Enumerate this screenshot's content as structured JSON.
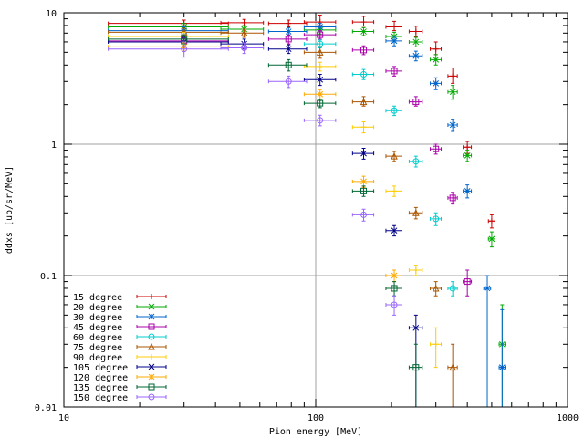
{
  "chart_data": {
    "type": "scatter",
    "title": "",
    "xlabel": "Pion energy [MeV]",
    "ylabel": "ddxs [ub/sr/MeV]",
    "xscale": "log",
    "yscale": "log",
    "xlim": [
      10,
      1000
    ],
    "ylim": [
      0.01,
      10
    ],
    "x_ticks": [
      {
        "value": 10,
        "label": "10"
      },
      {
        "value": 100,
        "label": "100"
      },
      {
        "value": 1000,
        "label": "1000"
      }
    ],
    "y_ticks": [
      {
        "value": 0.01,
        "label": "0.01"
      },
      {
        "value": 0.1,
        "label": "0.1"
      },
      {
        "value": 1,
        "label": "1"
      },
      {
        "value": 10,
        "label": "10"
      }
    ],
    "grid": true,
    "legend": "bottom-left",
    "series": [
      {
        "name": "15 degree",
        "color": "#cc0000",
        "marker": "plus",
        "points": [
          {
            "x": 30,
            "xlo": 15,
            "xhi": 45,
            "y": 8.3,
            "ylo": 7.8,
            "yhi": 8.8
          },
          {
            "x": 52,
            "xlo": 42,
            "xhi": 62,
            "y": 8.4,
            "ylo": 8.0,
            "yhi": 8.9
          },
          {
            "x": 78,
            "xlo": 65,
            "xhi": 92,
            "y": 8.3,
            "ylo": 7.8,
            "yhi": 8.8
          },
          {
            "x": 104,
            "xlo": 90,
            "xhi": 120,
            "y": 8.5,
            "ylo": 8.0,
            "yhi": 9.6
          },
          {
            "x": 155,
            "xlo": 140,
            "xhi": 170,
            "y": 8.5,
            "ylo": 7.9,
            "yhi": 9.4
          },
          {
            "x": 205,
            "xlo": 190,
            "xhi": 220,
            "y": 7.8,
            "ylo": 7.3,
            "yhi": 8.6
          },
          {
            "x": 250,
            "xlo": 235,
            "xhi": 265,
            "y": 7.2,
            "ylo": 6.6,
            "yhi": 7.9
          },
          {
            "x": 300,
            "xlo": 285,
            "xhi": 315,
            "y": 5.3,
            "ylo": 4.8,
            "yhi": 6.0
          },
          {
            "x": 350,
            "xlo": 335,
            "xhi": 365,
            "y": 3.3,
            "ylo": 2.9,
            "yhi": 3.8
          },
          {
            "x": 400,
            "xlo": 385,
            "xhi": 415,
            "y": 0.95,
            "ylo": 0.85,
            "yhi": 1.05
          },
          {
            "x": 500,
            "xlo": 485,
            "xhi": 515,
            "y": 0.26,
            "ylo": 0.23,
            "yhi": 0.29
          }
        ]
      },
      {
        "name": "20 degree",
        "color": "#00aa00",
        "marker": "x",
        "points": [
          {
            "x": 30,
            "xlo": 15,
            "xhi": 45,
            "y": 7.8,
            "ylo": 7.3,
            "yhi": 8.3
          },
          {
            "x": 52,
            "xlo": 42,
            "xhi": 62,
            "y": 7.5,
            "ylo": 7.0,
            "yhi": 8.0
          },
          {
            "x": 104,
            "xlo": 90,
            "xhi": 120,
            "y": 7.4,
            "ylo": 6.9,
            "yhi": 7.9
          },
          {
            "x": 155,
            "xlo": 140,
            "xhi": 170,
            "y": 7.2,
            "ylo": 6.7,
            "yhi": 7.7
          },
          {
            "x": 205,
            "xlo": 190,
            "xhi": 220,
            "y": 6.6,
            "ylo": 6.1,
            "yhi": 7.1
          },
          {
            "x": 250,
            "xlo": 235,
            "xhi": 265,
            "y": 6.0,
            "ylo": 5.5,
            "yhi": 6.5
          },
          {
            "x": 300,
            "xlo": 285,
            "xhi": 315,
            "y": 4.4,
            "ylo": 4.0,
            "yhi": 4.8
          },
          {
            "x": 350,
            "xlo": 335,
            "xhi": 365,
            "y": 2.5,
            "ylo": 2.2,
            "yhi": 2.8
          },
          {
            "x": 400,
            "xlo": 385,
            "xhi": 415,
            "y": 0.82,
            "ylo": 0.74,
            "yhi": 0.9
          },
          {
            "x": 500,
            "xlo": 485,
            "xhi": 515,
            "y": 0.19,
            "ylo": 0.165,
            "yhi": 0.215
          },
          {
            "x": 550,
            "xlo": 535,
            "xhi": 565,
            "y": 0.03,
            "ylo": 0.01,
            "yhi": 0.06
          }
        ]
      },
      {
        "name": "30 degree",
        "color": "#0066cc",
        "marker": "star",
        "points": [
          {
            "x": 30,
            "xlo": 15,
            "xhi": 45,
            "y": 7.3,
            "ylo": 6.8,
            "yhi": 7.8
          },
          {
            "x": 78,
            "xlo": 65,
            "xhi": 92,
            "y": 7.2,
            "ylo": 6.7,
            "yhi": 7.7
          },
          {
            "x": 104,
            "xlo": 90,
            "xhi": 120,
            "y": 7.8,
            "ylo": 7.3,
            "yhi": 8.3
          },
          {
            "x": 205,
            "xlo": 190,
            "xhi": 220,
            "y": 6.1,
            "ylo": 5.6,
            "yhi": 6.6
          },
          {
            "x": 250,
            "xlo": 235,
            "xhi": 265,
            "y": 4.7,
            "ylo": 4.3,
            "yhi": 5.1
          },
          {
            "x": 300,
            "xlo": 285,
            "xhi": 315,
            "y": 2.9,
            "ylo": 2.6,
            "yhi": 3.2
          },
          {
            "x": 350,
            "xlo": 335,
            "xhi": 365,
            "y": 1.4,
            "ylo": 1.25,
            "yhi": 1.55
          },
          {
            "x": 400,
            "xlo": 385,
            "xhi": 415,
            "y": 0.44,
            "ylo": 0.39,
            "yhi": 0.49
          },
          {
            "x": 480,
            "xlo": 465,
            "xhi": 495,
            "y": 0.08,
            "ylo": 0.01,
            "yhi": 0.1
          },
          {
            "x": 550,
            "xlo": 535,
            "xhi": 565,
            "y": 0.02,
            "ylo": 0.01,
            "yhi": 0.055
          }
        ]
      },
      {
        "name": "45 degree",
        "color": "#aa00aa",
        "marker": "square",
        "points": [
          {
            "x": 30,
            "xlo": 15,
            "xhi": 45,
            "y": 6.1,
            "ylo": 5.6,
            "yhi": 6.6
          },
          {
            "x": 78,
            "xlo": 65,
            "xhi": 92,
            "y": 6.3,
            "ylo": 5.8,
            "yhi": 6.8
          },
          {
            "x": 104,
            "xlo": 90,
            "xhi": 120,
            "y": 6.8,
            "ylo": 6.3,
            "yhi": 7.3
          },
          {
            "x": 155,
            "xlo": 140,
            "xhi": 170,
            "y": 5.2,
            "ylo": 4.8,
            "yhi": 5.6
          },
          {
            "x": 205,
            "xlo": 190,
            "xhi": 220,
            "y": 3.6,
            "ylo": 3.3,
            "yhi": 3.9
          },
          {
            "x": 250,
            "xlo": 235,
            "xhi": 265,
            "y": 2.1,
            "ylo": 1.95,
            "yhi": 2.3
          },
          {
            "x": 300,
            "xlo": 285,
            "xhi": 315,
            "y": 0.92,
            "ylo": 0.84,
            "yhi": 1.0
          },
          {
            "x": 350,
            "xlo": 335,
            "xhi": 365,
            "y": 0.39,
            "ylo": 0.35,
            "yhi": 0.43
          },
          {
            "x": 400,
            "xlo": 385,
            "xhi": 415,
            "y": 0.09,
            "ylo": 0.07,
            "yhi": 0.11
          }
        ]
      },
      {
        "name": "60 degree",
        "color": "#00cccc",
        "marker": "circle",
        "points": [
          {
            "x": 104,
            "xlo": 90,
            "xhi": 120,
            "y": 5.8,
            "ylo": 5.4,
            "yhi": 6.2
          },
          {
            "x": 155,
            "xlo": 140,
            "xhi": 170,
            "y": 3.4,
            "ylo": 3.1,
            "yhi": 3.7
          },
          {
            "x": 205,
            "xlo": 190,
            "xhi": 220,
            "y": 1.8,
            "ylo": 1.65,
            "yhi": 1.95
          },
          {
            "x": 250,
            "xlo": 235,
            "xhi": 265,
            "y": 0.74,
            "ylo": 0.67,
            "yhi": 0.81
          },
          {
            "x": 300,
            "xlo": 285,
            "xhi": 315,
            "y": 0.27,
            "ylo": 0.24,
            "yhi": 0.3
          },
          {
            "x": 350,
            "xlo": 335,
            "xhi": 365,
            "y": 0.08,
            "ylo": 0.07,
            "yhi": 0.09
          }
        ]
      },
      {
        "name": "75 degree",
        "color": "#aa5500",
        "marker": "triangle",
        "points": [
          {
            "x": 30,
            "xlo": 15,
            "xhi": 45,
            "y": 7.1,
            "ylo": 6.6,
            "yhi": 7.6
          },
          {
            "x": 52,
            "xlo": 42,
            "xhi": 62,
            "y": 7.0,
            "ylo": 6.5,
            "yhi": 7.5
          },
          {
            "x": 104,
            "xlo": 90,
            "xhi": 120,
            "y": 5.0,
            "ylo": 4.5,
            "yhi": 5.5
          },
          {
            "x": 155,
            "xlo": 140,
            "xhi": 170,
            "y": 2.1,
            "ylo": 1.95,
            "yhi": 2.3
          },
          {
            "x": 205,
            "xlo": 190,
            "xhi": 220,
            "y": 0.81,
            "ylo": 0.74,
            "yhi": 0.88
          },
          {
            "x": 250,
            "xlo": 235,
            "xhi": 265,
            "y": 0.3,
            "ylo": 0.27,
            "yhi": 0.33
          },
          {
            "x": 300,
            "xlo": 285,
            "xhi": 315,
            "y": 0.08,
            "ylo": 0.07,
            "yhi": 0.09
          },
          {
            "x": 350,
            "xlo": 335,
            "xhi": 365,
            "y": 0.02,
            "ylo": 0.01,
            "yhi": 0.03
          }
        ]
      },
      {
        "name": "90 degree",
        "color": "#ffcc00",
        "marker": "plus",
        "points": [
          {
            "x": 30,
            "xlo": 15,
            "xhi": 45,
            "y": 6.6,
            "ylo": 6.1,
            "yhi": 7.1
          },
          {
            "x": 104,
            "xlo": 90,
            "xhi": 120,
            "y": 3.9,
            "ylo": 3.6,
            "yhi": 4.2
          },
          {
            "x": 155,
            "xlo": 140,
            "xhi": 170,
            "y": 1.35,
            "ylo": 1.22,
            "yhi": 1.48
          },
          {
            "x": 205,
            "xlo": 190,
            "xhi": 220,
            "y": 0.44,
            "ylo": 0.4,
            "yhi": 0.48
          },
          {
            "x": 250,
            "xlo": 235,
            "xhi": 265,
            "y": 0.11,
            "ylo": 0.1,
            "yhi": 0.12
          },
          {
            "x": 300,
            "xlo": 285,
            "xhi": 315,
            "y": 0.03,
            "ylo": 0.02,
            "yhi": 0.04
          }
        ]
      },
      {
        "name": "105 degree",
        "color": "#000088",
        "marker": "x",
        "points": [
          {
            "x": 30,
            "xlo": 15,
            "xhi": 45,
            "y": 6.0,
            "ylo": 5.5,
            "yhi": 6.5
          },
          {
            "x": 52,
            "xlo": 42,
            "xhi": 62,
            "y": 5.8,
            "ylo": 5.3,
            "yhi": 6.3
          },
          {
            "x": 78,
            "xlo": 65,
            "xhi": 92,
            "y": 5.3,
            "ylo": 4.9,
            "yhi": 5.7
          },
          {
            "x": 104,
            "xlo": 90,
            "xhi": 120,
            "y": 3.1,
            "ylo": 2.8,
            "yhi": 3.4
          },
          {
            "x": 155,
            "xlo": 140,
            "xhi": 170,
            "y": 0.85,
            "ylo": 0.77,
            "yhi": 0.93
          },
          {
            "x": 205,
            "xlo": 190,
            "xhi": 220,
            "y": 0.22,
            "ylo": 0.2,
            "yhi": 0.24
          },
          {
            "x": 250,
            "xlo": 235,
            "xhi": 265,
            "y": 0.04,
            "ylo": 0.01,
            "yhi": 0.05
          }
        ]
      },
      {
        "name": "120 degree",
        "color": "#ffaa00",
        "marker": "star",
        "points": [
          {
            "x": 30,
            "xlo": 15,
            "xhi": 45,
            "y": 5.5,
            "ylo": 5.1,
            "yhi": 5.9
          },
          {
            "x": 104,
            "xlo": 90,
            "xhi": 120,
            "y": 2.4,
            "ylo": 2.2,
            "yhi": 2.6
          },
          {
            "x": 155,
            "xlo": 140,
            "xhi": 170,
            "y": 0.52,
            "ylo": 0.47,
            "yhi": 0.57
          },
          {
            "x": 205,
            "xlo": 190,
            "xhi": 220,
            "y": 0.1,
            "ylo": 0.09,
            "yhi": 0.11
          }
        ]
      },
      {
        "name": "135 degree",
        "color": "#006633",
        "marker": "square",
        "points": [
          {
            "x": 30,
            "xlo": 15,
            "xhi": 45,
            "y": 6.3,
            "ylo": 5.8,
            "yhi": 6.8
          },
          {
            "x": 78,
            "xlo": 65,
            "xhi": 92,
            "y": 4.0,
            "ylo": 3.6,
            "yhi": 4.4
          },
          {
            "x": 104,
            "xlo": 90,
            "xhi": 120,
            "y": 2.05,
            "ylo": 1.9,
            "yhi": 2.2
          },
          {
            "x": 155,
            "xlo": 140,
            "xhi": 170,
            "y": 0.44,
            "ylo": 0.4,
            "yhi": 0.48
          },
          {
            "x": 205,
            "xlo": 190,
            "xhi": 220,
            "y": 0.08,
            "ylo": 0.07,
            "yhi": 0.09
          },
          {
            "x": 250,
            "xlo": 235,
            "xhi": 265,
            "y": 0.02,
            "ylo": 0.01,
            "yhi": 0.03
          }
        ]
      },
      {
        "name": "150 degree",
        "color": "#9966ff",
        "marker": "circle",
        "points": [
          {
            "x": 30,
            "xlo": 15,
            "xhi": 45,
            "y": 5.3,
            "ylo": 4.6,
            "yhi": 6.0
          },
          {
            "x": 52,
            "xlo": 42,
            "xhi": 62,
            "y": 5.4,
            "ylo": 4.9,
            "yhi": 5.9
          },
          {
            "x": 78,
            "xlo": 65,
            "xhi": 92,
            "y": 3.0,
            "ylo": 2.7,
            "yhi": 3.3
          },
          {
            "x": 104,
            "xlo": 90,
            "xhi": 120,
            "y": 1.52,
            "ylo": 1.38,
            "yhi": 1.66
          },
          {
            "x": 155,
            "xlo": 140,
            "xhi": 170,
            "y": 0.29,
            "ylo": 0.26,
            "yhi": 0.32
          },
          {
            "x": 205,
            "xlo": 190,
            "xhi": 220,
            "y": 0.06,
            "ylo": 0.05,
            "yhi": 0.07
          }
        ]
      }
    ]
  }
}
